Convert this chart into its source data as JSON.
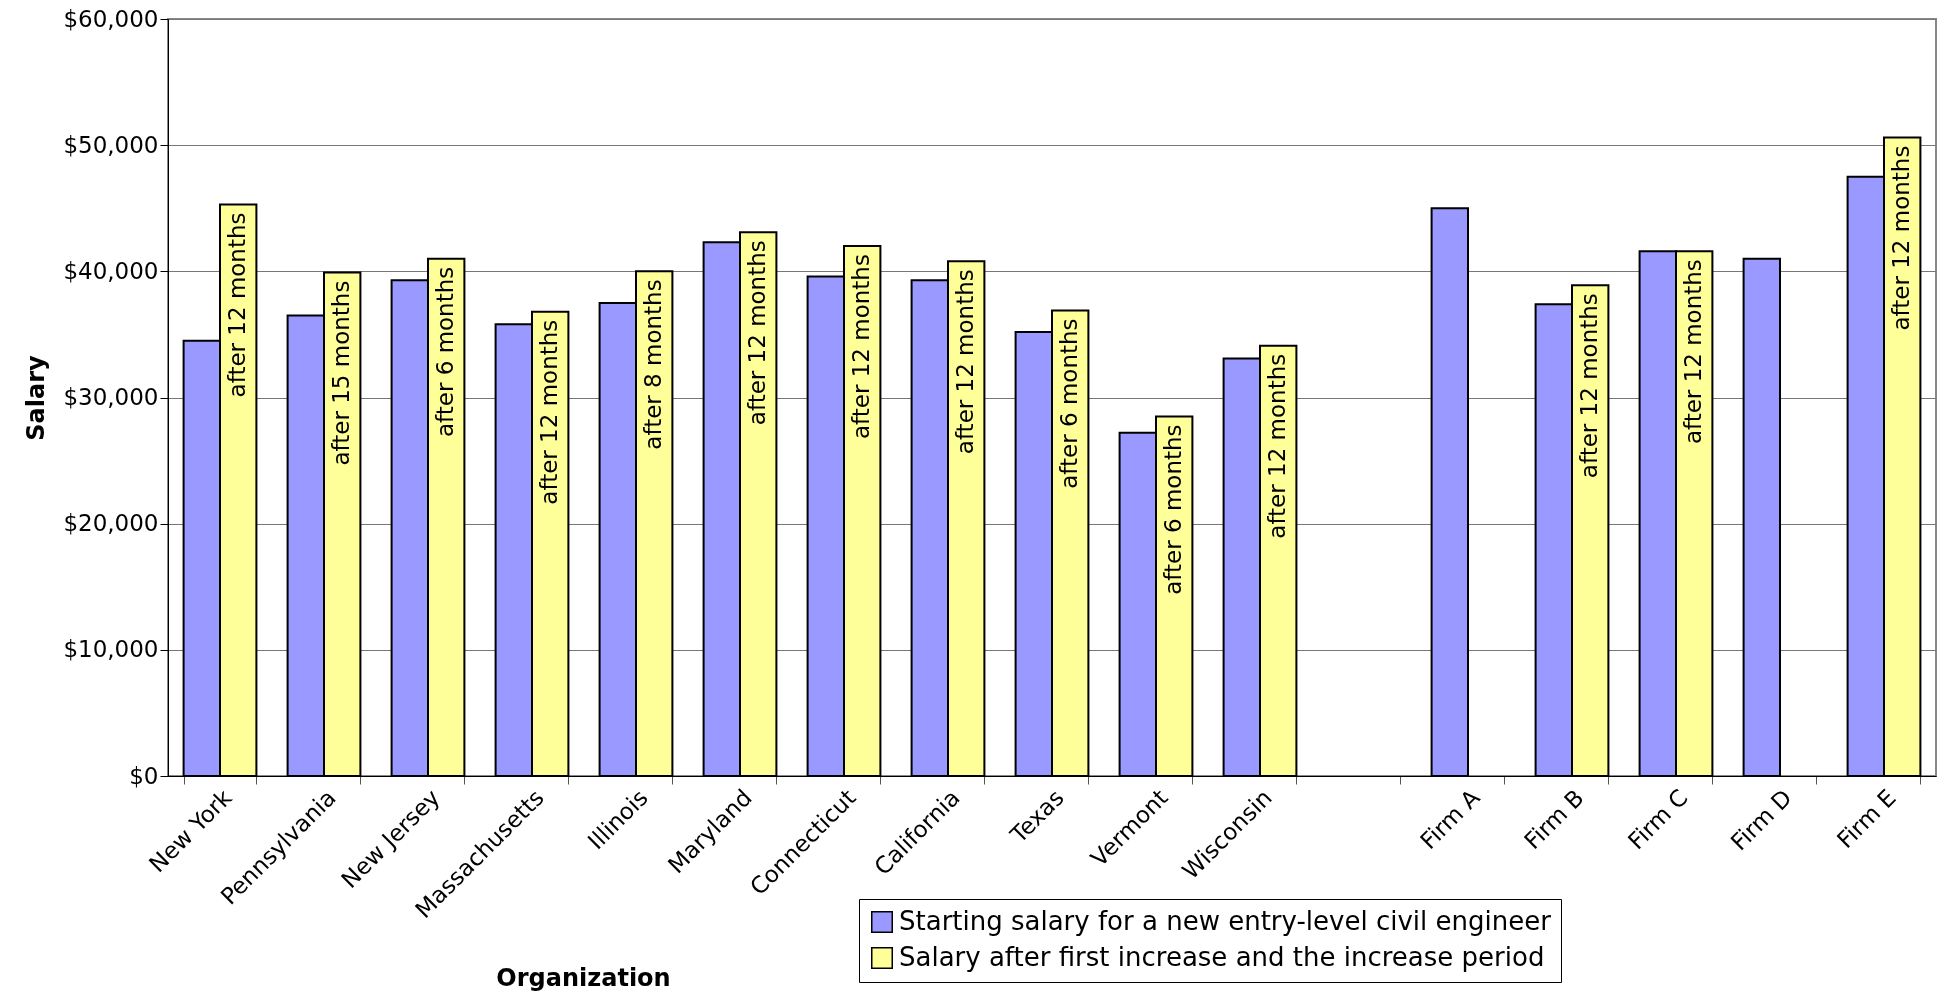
{
  "chart_data": {
    "type": "bar",
    "xlabel": "Organization",
    "ylabel": "Salary",
    "categories": [
      "New York",
      "Pennsylvania",
      "New Jersey",
      "Massachusetts",
      "Illinois",
      "Maryland",
      "Connecticut",
      "California",
      "Texas",
      "Vermont",
      "Wisconsin",
      null,
      "Firm A",
      "Firm B",
      "Firm C",
      "Firm D",
      "Firm E"
    ],
    "series": [
      {
        "name": "Starting salary for a new entry-level civil engineer",
        "color": "#9999ff",
        "values": [
          34500,
          36500,
          39300,
          35800,
          37500,
          42300,
          39600,
          39300,
          35200,
          27200,
          33100,
          null,
          45000,
          37400,
          41600,
          41000,
          47500
        ]
      },
      {
        "name": "Salary after first increase and the increase period",
        "color": "#ffff99",
        "values": [
          45300,
          39900,
          41000,
          36800,
          40000,
          43100,
          42000,
          40800,
          36900,
          28500,
          34100,
          null,
          null,
          38900,
          41600,
          null,
          50600
        ],
        "value_labels": [
          "after 12 months",
          "after 15 months",
          "after 6 months",
          "after 12 months",
          "after 8 months",
          "after 12 months",
          "after 12 months",
          "after 12 months",
          "after 6 months",
          "after 6 months",
          "after 12 months",
          null,
          null,
          "after 12 months",
          "after 12 months",
          null,
          "after 12 months"
        ]
      }
    ],
    "ylim": [
      0,
      60000
    ],
    "yticks": [
      {
        "value": 0,
        "label": "$0"
      },
      {
        "value": 10000,
        "label": "$10,000"
      },
      {
        "value": 20000,
        "label": "$20,000"
      },
      {
        "value": 30000,
        "label": "$30,000"
      },
      {
        "value": 40000,
        "label": "$40,000"
      },
      {
        "value": 50000,
        "label": "$50,000"
      },
      {
        "value": 60000,
        "label": "$60,000"
      }
    ],
    "grid": "y",
    "legend": "bottom right"
  }
}
